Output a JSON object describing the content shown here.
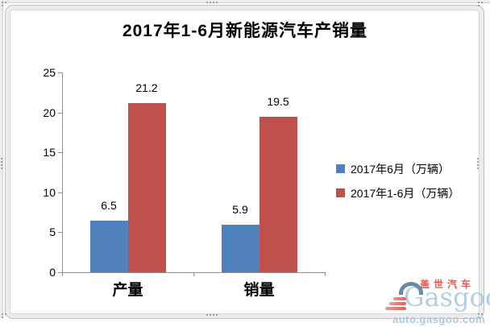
{
  "chart_data": {
    "type": "bar",
    "title": "2017年1-6月新能源汽车产销量",
    "categories": [
      "产量",
      "销量"
    ],
    "series": [
      {
        "name": "2017年6月（万辆）",
        "color": "#4F81BD",
        "values": [
          6.5,
          5.9
        ]
      },
      {
        "name": "2017年1-6月（万辆）",
        "color": "#C0504D",
        "values": [
          21.2,
          19.5
        ]
      }
    ],
    "xlabel": "",
    "ylabel": "",
    "ylim": [
      0,
      25
    ],
    "yticks": [
      0,
      5,
      10,
      15,
      20,
      25
    ],
    "grid": false,
    "legend_position": "right",
    "data_labels": true,
    "axis_color": "#8F8F8F",
    "text_color": "#000000"
  },
  "watermark": {
    "brand_cn": "盖世汽车",
    "brand_en": "Gasgoo",
    "url": "auto.gasgoo.com",
    "colors": {
      "red": "#DD5450",
      "stripe_light": "#F0908A",
      "stripe_dark": "#DF5A52",
      "light_blue": "#AFCCDF",
      "url_blue": "#A9C7DD",
      "arc_blue": "#5E86A8"
    }
  }
}
